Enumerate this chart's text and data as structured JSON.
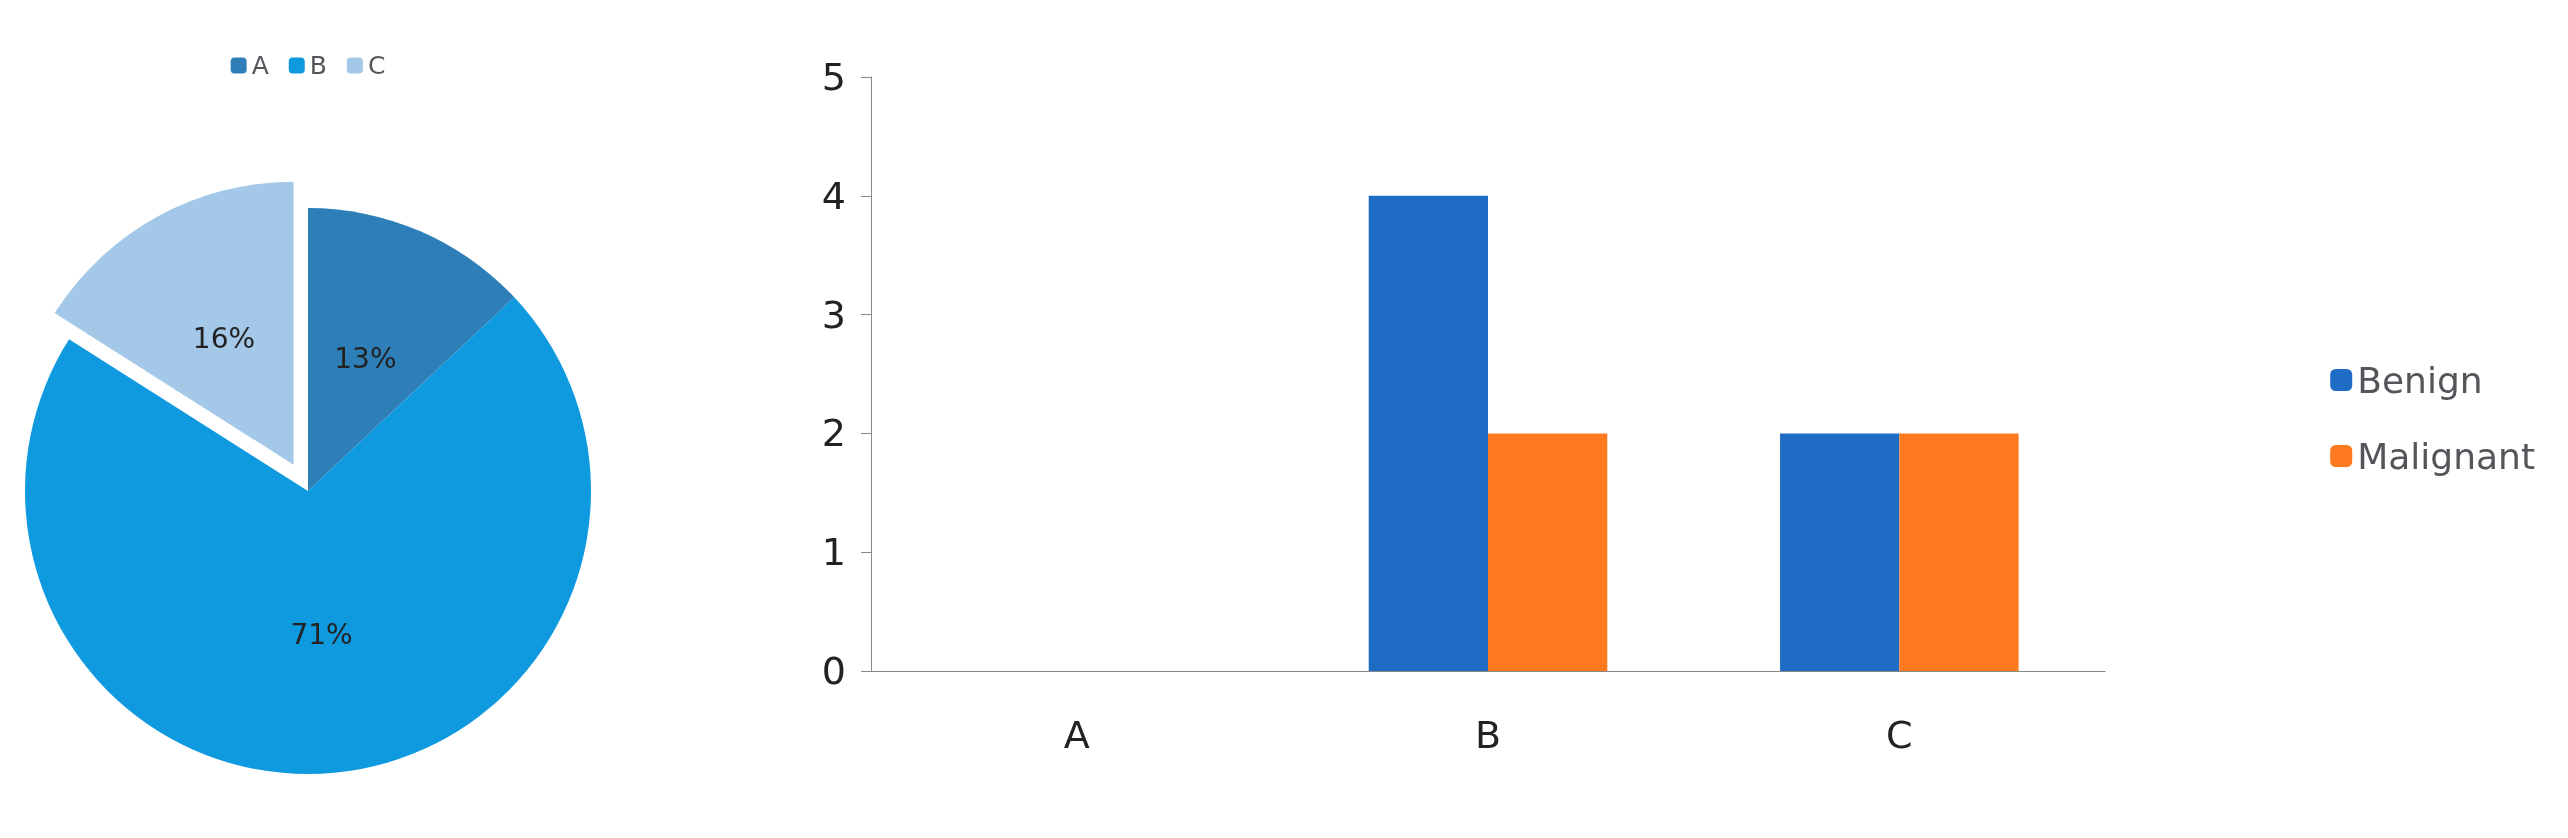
{
  "chart_data": [
    {
      "type": "pie",
      "categories": [
        "A",
        "B",
        "C"
      ],
      "values": [
        13,
        71,
        16
      ],
      "colors": [
        "#2e7fb8",
        "#0f9ae0",
        "#a3c8e8"
      ],
      "value_labels": [
        "13%",
        "71%",
        "16%"
      ],
      "legend": "top"
    },
    {
      "type": "bar",
      "categories": [
        "A",
        "B",
        "C"
      ],
      "series": [
        {
          "name": "Benign",
          "color": "#1f6cc4",
          "values": [
            0,
            4,
            2
          ]
        },
        {
          "name": "Malignant",
          "color": "#ff7a1f",
          "values": [
            0,
            2,
            2
          ]
        }
      ],
      "ylim": [
        0,
        5
      ],
      "yticks": [
        0,
        1,
        2,
        3,
        4,
        5
      ],
      "grid": false,
      "legend": "right"
    }
  ]
}
